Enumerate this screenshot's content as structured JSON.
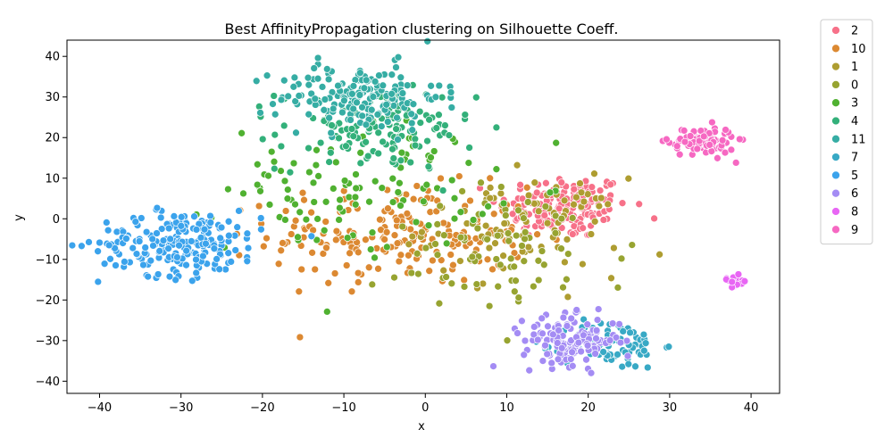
{
  "chart_data": {
    "type": "scatter",
    "title": "Best AffinityPropagation clustering on Silhouette Coeff.",
    "xlabel": "x",
    "ylabel": "y",
    "xlim": [
      -44,
      43.5
    ],
    "ylim": [
      -43,
      44
    ],
    "xticks": [
      -40,
      -30,
      -20,
      -10,
      0,
      10,
      20,
      30,
      40
    ],
    "yticks": [
      -40,
      -30,
      -20,
      -10,
      0,
      10,
      20,
      30,
      40
    ],
    "grid": false,
    "legend_position": "outside-right",
    "series": [
      {
        "name": "2",
        "color": "#f77189",
        "center": [
          17,
          3
        ],
        "spread": [
          4,
          4
        ],
        "count": 160
      },
      {
        "name": "10",
        "color": "#dc8932",
        "center": [
          -3,
          -4
        ],
        "spread": [
          8,
          6
        ],
        "count": 200
      },
      {
        "name": "1",
        "color": "#ae9d31",
        "center": [
          12,
          -2
        ],
        "spread": [
          6,
          6
        ],
        "count": 90
      },
      {
        "name": "0",
        "color": "#97a431",
        "center": [
          10,
          -8
        ],
        "spread": [
          8,
          8
        ],
        "count": 80
      },
      {
        "name": "3",
        "color": "#50b131",
        "center": [
          -8,
          8
        ],
        "spread": [
          8,
          8
        ],
        "count": 110
      },
      {
        "name": "4",
        "color": "#33b07a",
        "center": [
          -6,
          22
        ],
        "spread": [
          6,
          5
        ],
        "count": 130
      },
      {
        "name": "11",
        "color": "#36ada4",
        "center": [
          -8,
          30
        ],
        "spread": [
          5,
          4
        ],
        "count": 170
      },
      {
        "name": "7",
        "color": "#38a9c5",
        "center": [
          23,
          -31
        ],
        "spread": [
          3,
          3
        ],
        "count": 90
      },
      {
        "name": "5",
        "color": "#3ba3ec",
        "center": [
          -30,
          -6
        ],
        "spread": [
          5,
          4
        ],
        "count": 220
      },
      {
        "name": "6",
        "color": "#a48cf4",
        "center": [
          18,
          -30
        ],
        "spread": [
          3,
          3
        ],
        "count": 140
      },
      {
        "name": "8",
        "color": "#e866f4",
        "center": [
          38,
          -15
        ],
        "spread": [
          0.8,
          0.8
        ],
        "count": 15
      },
      {
        "name": "9",
        "color": "#f668c2",
        "center": [
          34,
          19
        ],
        "spread": [
          2,
          1.8
        ],
        "count": 100
      }
    ]
  }
}
